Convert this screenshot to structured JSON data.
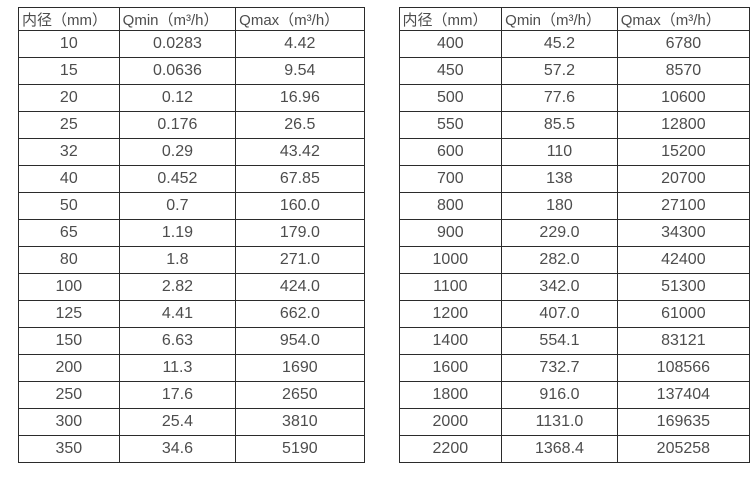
{
  "page": {
    "background_color": "#ffffff",
    "border_color": "#2b2b2b",
    "text_color": "#4d4d4d",
    "description": "Two side-by-side specification tables of pipe inner diameter vs minimum and maximum flow rate"
  },
  "tables": [
    {
      "name": "flow-table-small-diameters",
      "headers": [
        "内径（mm）",
        "Qmin（m³/h）",
        "Qmax（m³/h）"
      ],
      "rows": [
        [
          "10",
          "0.0283",
          "4.42"
        ],
        [
          "15",
          "0.0636",
          "9.54"
        ],
        [
          "20",
          "0.12",
          "16.96"
        ],
        [
          "25",
          "0.176",
          "26.5"
        ],
        [
          "32",
          "0.29",
          "43.42"
        ],
        [
          "40",
          "0.452",
          "67.85"
        ],
        [
          "50",
          "0.7",
          "160.0"
        ],
        [
          "65",
          "1.19",
          "179.0"
        ],
        [
          "80",
          "1.8",
          "271.0"
        ],
        [
          "100",
          "2.82",
          "424.0"
        ],
        [
          "125",
          "4.41",
          "662.0"
        ],
        [
          "150",
          "6.63",
          "954.0"
        ],
        [
          "200",
          "11.3",
          "1690"
        ],
        [
          "250",
          "17.6",
          "2650"
        ],
        [
          "300",
          "25.4",
          "3810"
        ],
        [
          "350",
          "34.6",
          "5190"
        ]
      ]
    },
    {
      "name": "flow-table-large-diameters",
      "headers": [
        "内径（mm）",
        "Qmin（m³/h）",
        "Qmax（m³/h）"
      ],
      "rows": [
        [
          "400",
          "45.2",
          "6780"
        ],
        [
          "450",
          "57.2",
          "8570"
        ],
        [
          "500",
          "77.6",
          "10600"
        ],
        [
          "550",
          "85.5",
          "12800"
        ],
        [
          "600",
          "110",
          "15200"
        ],
        [
          "700",
          "138",
          "20700"
        ],
        [
          "800",
          "180",
          "27100"
        ],
        [
          "900",
          "229.0",
          "34300"
        ],
        [
          "1000",
          "282.0",
          "42400"
        ],
        [
          "1100",
          "342.0",
          "51300"
        ],
        [
          "1200",
          "407.0",
          "61000"
        ],
        [
          "1400",
          "554.1",
          "83121"
        ],
        [
          "1600",
          "732.7",
          "108566"
        ],
        [
          "1800",
          "916.0",
          "137404"
        ],
        [
          "2000",
          "1131.0",
          "169635"
        ],
        [
          "2200",
          "1368.4",
          "205258"
        ]
      ]
    }
  ]
}
